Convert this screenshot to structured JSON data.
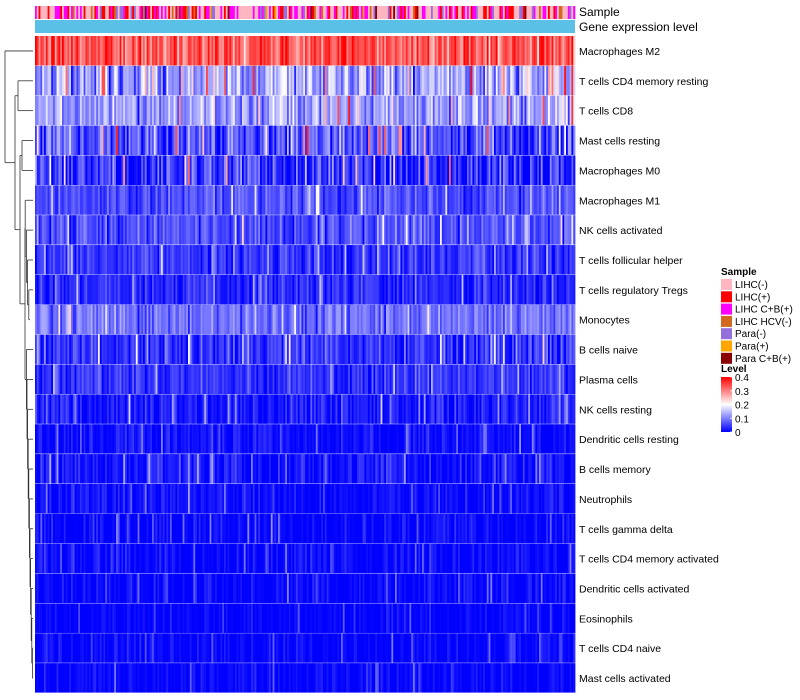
{
  "chart_data": {
    "type": "heatmap",
    "title": "",
    "rows": [
      {
        "label": "Macrophages M2",
        "mean": 0.33,
        "spread": 0.07,
        "dendro_leaf": true
      },
      {
        "label": "T cells CD4 memory resting",
        "mean": 0.13,
        "spread": 0.08
      },
      {
        "label": "T cells CD8",
        "mean": 0.12,
        "spread": 0.07
      },
      {
        "label": "Mast cells resting",
        "mean": 0.07,
        "spread": 0.08
      },
      {
        "label": "Macrophages M0",
        "mean": 0.04,
        "spread": 0.09
      },
      {
        "label": "Macrophages M1",
        "mean": 0.06,
        "spread": 0.04
      },
      {
        "label": "NK cells activated",
        "mean": 0.06,
        "spread": 0.05
      },
      {
        "label": "T cells follicular helper",
        "mean": 0.04,
        "spread": 0.04
      },
      {
        "label": "T cells regulatory  Tregs",
        "mean": 0.03,
        "spread": 0.04
      },
      {
        "label": "Monocytes",
        "mean": 0.09,
        "spread": 0.05
      },
      {
        "label": "B cells naive",
        "mean": 0.04,
        "spread": 0.05
      },
      {
        "label": "Plasma cells",
        "mean": 0.04,
        "spread": 0.04
      },
      {
        "label": "NK cells resting",
        "mean": 0.02,
        "spread": 0.04
      },
      {
        "label": "Dendritic cells resting",
        "mean": 0.01,
        "spread": 0.03
      },
      {
        "label": "B cells memory",
        "mean": 0.015,
        "spread": 0.04
      },
      {
        "label": "Neutrophils",
        "mean": 0.01,
        "spread": 0.03
      },
      {
        "label": "T cells gamma delta",
        "mean": 0.005,
        "spread": 0.03
      },
      {
        "label": "T cells CD4 memory activated",
        "mean": 0.004,
        "spread": 0.03
      },
      {
        "label": "Dendritic cells activated",
        "mean": 0.004,
        "spread": 0.03
      },
      {
        "label": "Eosinophils",
        "mean": 0.002,
        "spread": 0.02
      },
      {
        "label": "T cells CD4 naive",
        "mean": 0.003,
        "spread": 0.025
      },
      {
        "label": "Mast cells activated",
        "mean": 0.003,
        "spread": 0.025
      }
    ],
    "n_columns": 300,
    "annotations": [
      {
        "label": "Sample",
        "type": "categorical"
      },
      {
        "label": "Gene expression level",
        "type": "continuous",
        "color": "#5bc0e6"
      }
    ],
    "sample_legend": {
      "title": "Sample",
      "categories": [
        {
          "label": "LIHC(-)",
          "color": "#ffb6c1"
        },
        {
          "label": "LIHC(+)",
          "color": "#ff0000"
        },
        {
          "label": "LIHC C+B(+)",
          "color": "#ff00ff"
        },
        {
          "label": "LIHC HCV(-)",
          "color": "#d2691e"
        },
        {
          "label": "Para(-)",
          "color": "#9370db"
        },
        {
          "label": "Para(+)",
          "color": "#ffa500"
        },
        {
          "label": "Para C+B(+)",
          "color": "#8b0000"
        }
      ]
    },
    "level_legend": {
      "title": "Level",
      "ticks": [
        {
          "label": "0.4",
          "value": 0.4
        },
        {
          "label": "0.3",
          "value": 0.3
        },
        {
          "label": "0.2",
          "value": 0.2
        },
        {
          "label": "0.1",
          "value": 0.1
        },
        {
          "label": "0",
          "value": 0
        }
      ],
      "range": [
        0,
        0.4
      ],
      "color_stops": [
        {
          "value": 0,
          "color": "#0000ff"
        },
        {
          "value": 0.2,
          "color": "#ffffff"
        },
        {
          "value": 0.4,
          "color": "#ff0000"
        }
      ]
    },
    "sample_weights": [
      0.45,
      0.2,
      0.2,
      0.03,
      0.08,
      0.02,
      0.02
    ]
  }
}
